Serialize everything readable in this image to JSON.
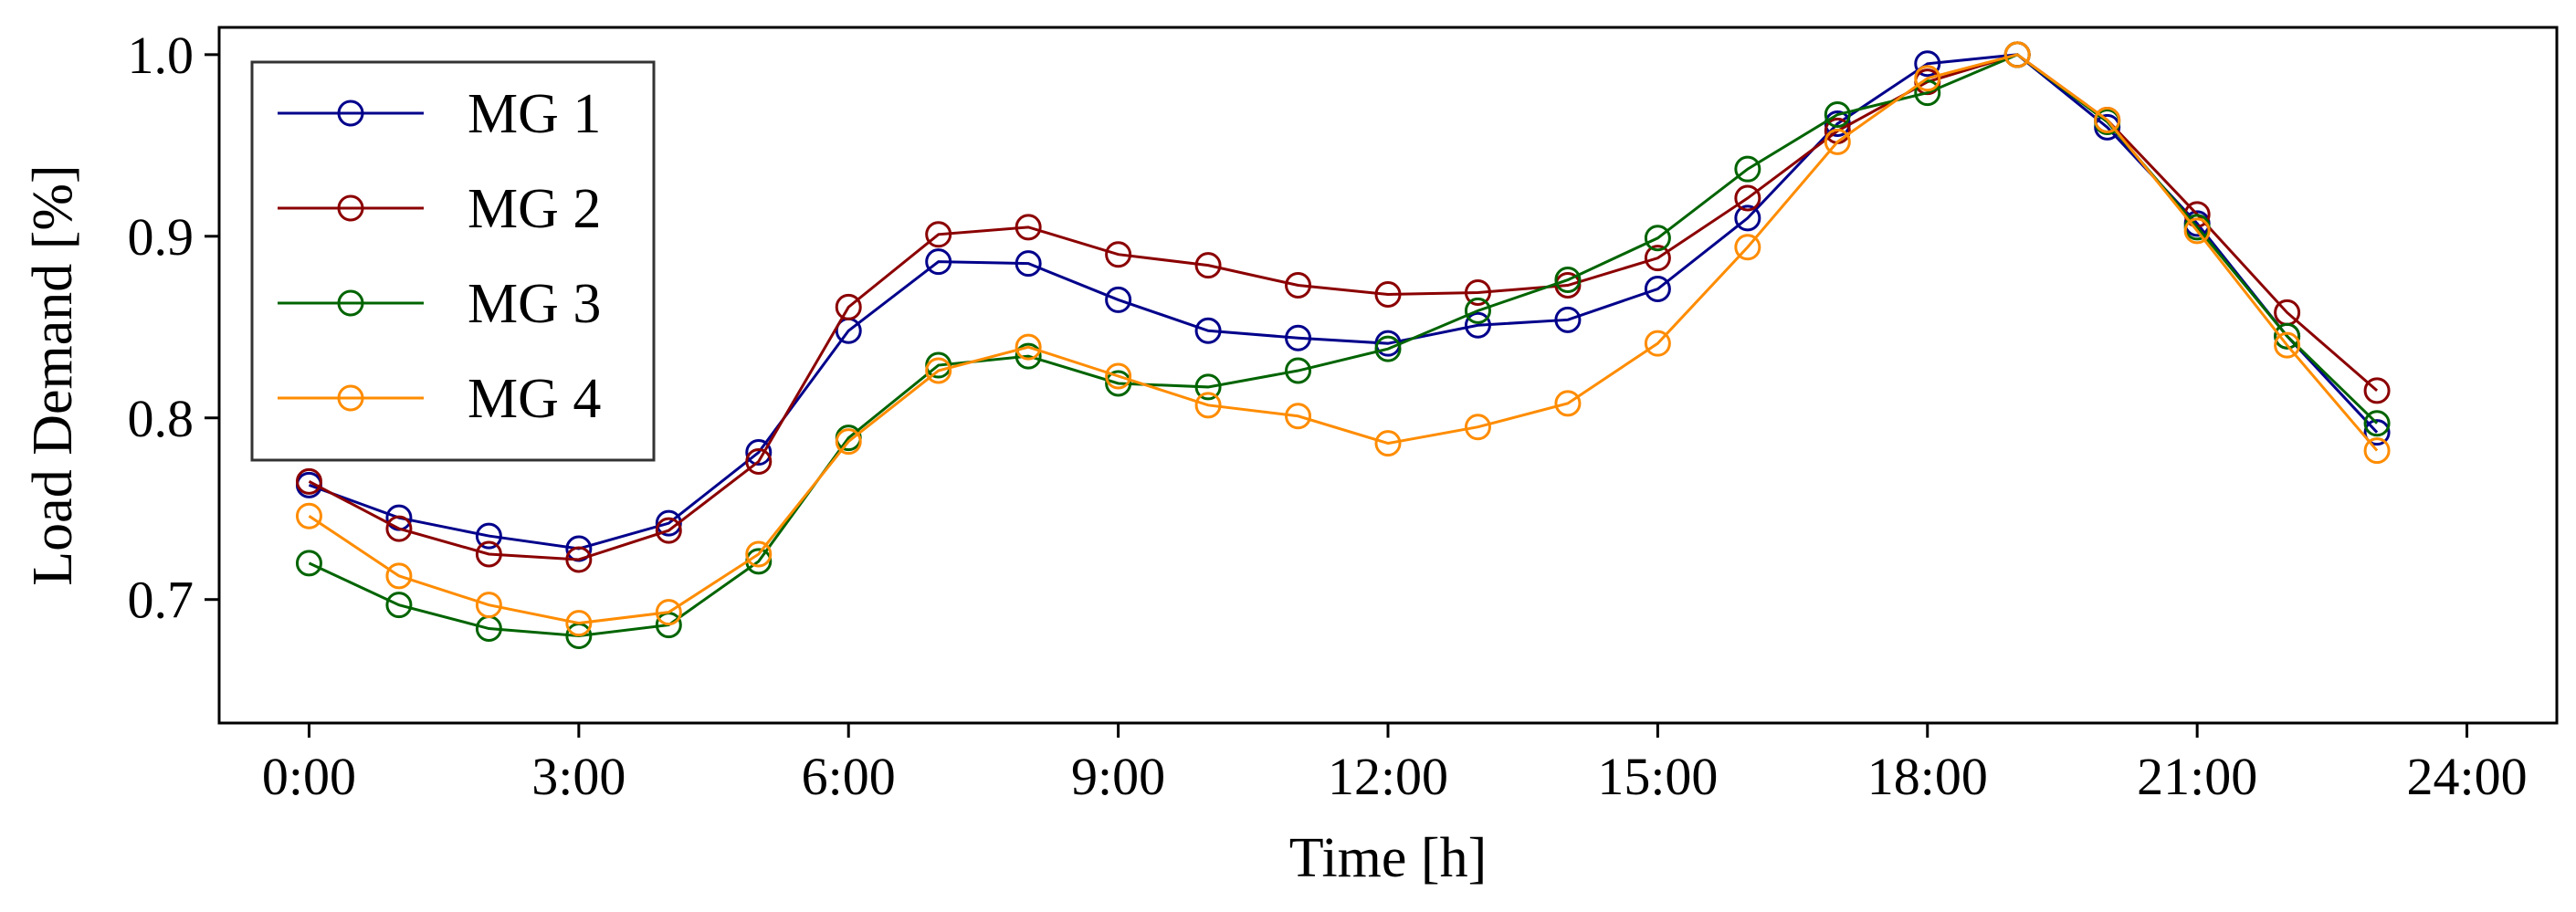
{
  "chart_data": {
    "type": "line",
    "title": "",
    "xlabel": "Time [h]",
    "ylabel": "Load Demand [%]",
    "xlim": [
      -1,
      25
    ],
    "ylim": [
      0.632,
      1.015
    ],
    "x": [
      0,
      1,
      2,
      3,
      4,
      5,
      6,
      7,
      8,
      9,
      10,
      11,
      12,
      13,
      14,
      15,
      16,
      17,
      18,
      19,
      20,
      21,
      22,
      23
    ],
    "xticks": [
      {
        "value": 0,
        "label": "0:00"
      },
      {
        "value": 3,
        "label": "3:00"
      },
      {
        "value": 6,
        "label": "6:00"
      },
      {
        "value": 9,
        "label": "9:00"
      },
      {
        "value": 12,
        "label": "12:00"
      },
      {
        "value": 15,
        "label": "15:00"
      },
      {
        "value": 18,
        "label": "18:00"
      },
      {
        "value": 21,
        "label": "21:00"
      },
      {
        "value": 24,
        "label": "24:00"
      }
    ],
    "yticks": [
      {
        "value": 0.7,
        "label": "0.7"
      },
      {
        "value": 0.8,
        "label": "0.8"
      },
      {
        "value": 0.9,
        "label": "0.9"
      },
      {
        "value": 1.0,
        "label": "1.0"
      }
    ],
    "grid": false,
    "legend_position": "top-left",
    "series": [
      {
        "name": "MG 1",
        "color": "#00008b",
        "values": [
          0.763,
          0.745,
          0.735,
          0.728,
          0.742,
          0.781,
          0.848,
          0.886,
          0.885,
          0.865,
          0.848,
          0.844,
          0.841,
          0.851,
          0.854,
          0.871,
          0.91,
          0.962,
          0.995,
          1.0,
          0.96,
          0.907,
          0.845,
          0.792
        ]
      },
      {
        "name": "MG 2",
        "color": "#8b0000",
        "values": [
          0.765,
          0.739,
          0.725,
          0.722,
          0.738,
          0.776,
          0.861,
          0.901,
          0.905,
          0.89,
          0.884,
          0.873,
          0.868,
          0.869,
          0.873,
          0.888,
          0.921,
          0.958,
          0.985,
          1.0,
          0.964,
          0.912,
          0.858,
          0.815
        ]
      },
      {
        "name": "MG 3",
        "color": "#006400",
        "values": [
          0.72,
          0.697,
          0.684,
          0.68,
          0.686,
          0.721,
          0.789,
          0.829,
          0.834,
          0.819,
          0.817,
          0.826,
          0.838,
          0.859,
          0.876,
          0.899,
          0.937,
          0.967,
          0.979,
          1.0,
          0.963,
          0.905,
          0.845,
          0.797
        ]
      },
      {
        "name": "MG 4",
        "color": "#ff8c00",
        "values": [
          0.746,
          0.713,
          0.697,
          0.687,
          0.693,
          0.725,
          0.787,
          0.826,
          0.839,
          0.823,
          0.807,
          0.801,
          0.786,
          0.795,
          0.808,
          0.841,
          0.894,
          0.952,
          0.987,
          1.0,
          0.964,
          0.903,
          0.84,
          0.782
        ]
      }
    ]
  }
}
